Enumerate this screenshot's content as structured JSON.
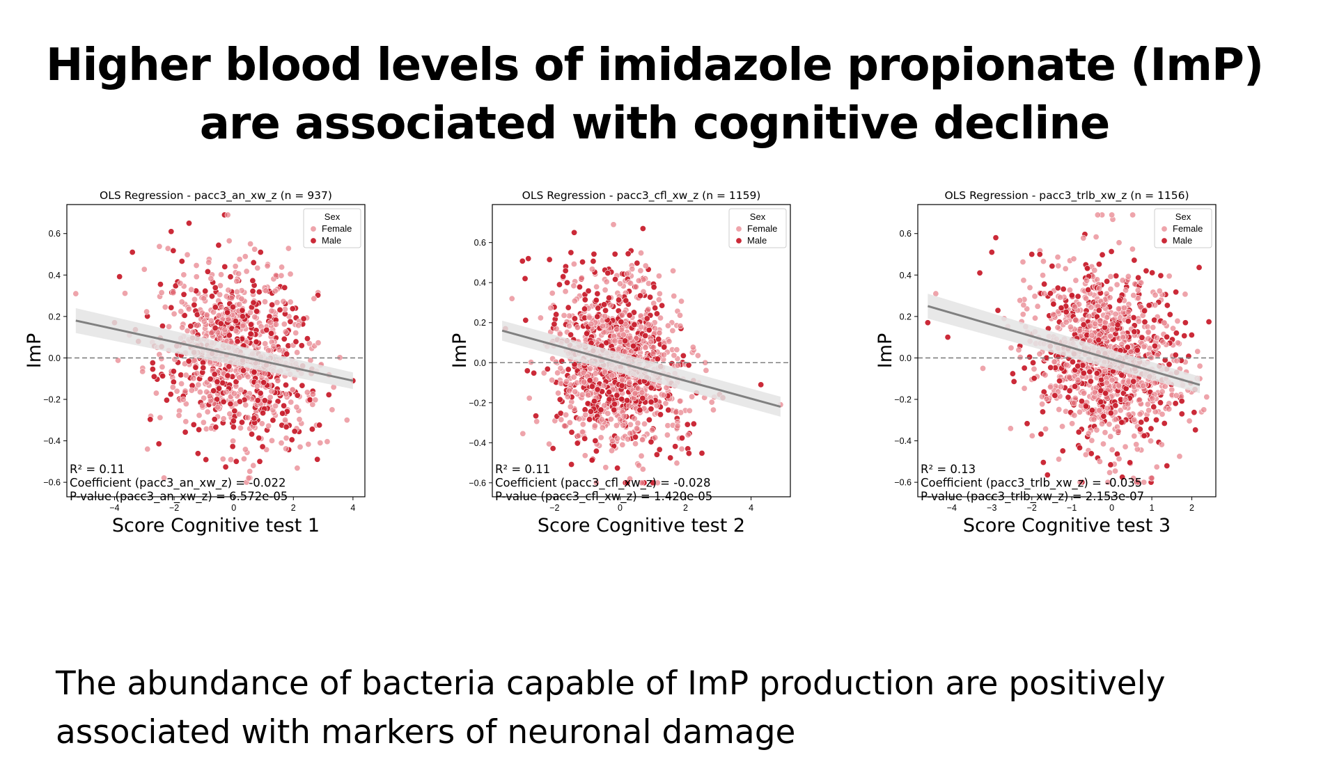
{
  "slide": {
    "title_line1": "Higher blood levels of imidazole propionate (ImP)",
    "title_line2": "are associated with cognitive decline",
    "footer_line1": "The abundance of bacteria capable of ImP production are positively",
    "footer_line2": "associated with markers of neuronal damage"
  },
  "colors": {
    "female": "#e8868f",
    "male": "#c81f2d",
    "regression_line": "#808080",
    "confidence_band": "#e4e4e4",
    "zero_line": "#808080"
  },
  "chart_data": [
    {
      "type": "scatter",
      "title": "OLS Regression - pacc3_an_xw_z (n = 937)",
      "xlabel": "Score Cognitive test 1",
      "ylabel": "ImP",
      "xlim": [
        -5.6,
        4.4
      ],
      "ylim": [
        -0.67,
        0.74
      ],
      "xticks": [
        -4,
        -2,
        0,
        2,
        4
      ],
      "xtick_labels": [
        "−4",
        "−2",
        "0",
        "2",
        "4"
      ],
      "yticks": [
        -0.6,
        -0.4,
        -0.2,
        0.0,
        0.2,
        0.4,
        0.6
      ],
      "ytick_labels": [
        "−0.6",
        "−0.4",
        "−0.2",
        "0.0",
        "0.2",
        "0.4",
        "0.6"
      ],
      "legend": {
        "title": "Sex",
        "position": "top-right",
        "entries": [
          "Female",
          "Male"
        ]
      },
      "grid": false,
      "zero_line": true,
      "regression": {
        "x": [
          -5.3,
          4.0
        ],
        "y": [
          0.18,
          -0.11
        ],
        "band_halfwidth": [
          0.06,
          0.04
        ]
      },
      "annotations": [
        "R² = 0.11",
        "Coefficient (pacc3_an_xw_z) = -0.022",
        "P-value (pacc3_an_xw_z) = 6.572e-05"
      ],
      "scatter": {
        "n": 937,
        "x_mean": 0.1,
        "x_sd": 1.25,
        "y_mean": 0.0,
        "y_sd": 0.22,
        "slope": -0.022
      },
      "series": [
        {
          "name": "Female",
          "x": [
            -5.3,
            -3.5,
            -2.6,
            3.3,
            3.8,
            0.5,
            -0.2,
            2.9
          ],
          "y": [
            0.31,
            0.11,
            -0.17,
            -0.25,
            -0.3,
            -0.58,
            0.69,
            -0.41
          ]
        },
        {
          "name": "Male",
          "x": [
            -4.0,
            -3.2,
            -1.5,
            4.0,
            -2.1,
            0.9,
            -3.4
          ],
          "y": [
            0.17,
            0.08,
            0.65,
            -0.11,
            0.61,
            0.51,
            0.51
          ]
        }
      ]
    },
    {
      "type": "scatter",
      "title": "OLS Regression - pacc3_cfl_xw_z (n = 1159)",
      "xlabel": "Score Cognitive test 2",
      "ylabel": "ImP",
      "xlim": [
        -3.9,
        5.2
      ],
      "ylim": [
        -0.67,
        0.79
      ],
      "xticks": [
        -2,
        0,
        2,
        4
      ],
      "xtick_labels": [
        "−2",
        "0",
        "2",
        "4"
      ],
      "yticks": [
        -0.6,
        -0.4,
        -0.2,
        0.0,
        0.2,
        0.4,
        0.6
      ],
      "ytick_labels": [
        "−0.6",
        "−0.4",
        "−0.2",
        "0.0",
        "0.2",
        "0.4",
        "0.6"
      ],
      "legend": {
        "title": "Sex",
        "position": "top-right",
        "entries": [
          "Female",
          "Male"
        ]
      },
      "grid": false,
      "zero_line": true,
      "regression": {
        "x": [
          -3.6,
          4.9
        ],
        "y": [
          0.16,
          -0.22
        ],
        "band_halfwidth": [
          0.05,
          0.05
        ]
      },
      "annotations": [
        "R² = 0.11",
        "Coefficient (pacc3_cfl_xw_z) = -0.028",
        "P-value (pacc3_cfl_xw_z) = 1.420e-05"
      ],
      "scatter": {
        "n": 1159,
        "x_mean": -0.1,
        "x_sd": 1.0,
        "y_mean": 0.0,
        "y_sd": 0.22,
        "slope": -0.028
      },
      "series": [
        {
          "name": "Female",
          "x": [
            -3.3,
            4.9,
            2.4,
            0.3,
            -0.2,
            2.6
          ],
          "y": [
            0.32,
            -0.21,
            -0.1,
            -0.58,
            0.69,
            0.0
          ]
        },
        {
          "name": "Male",
          "x": [
            -3.5,
            4.3,
            -1.4,
            -2.8,
            -2.9,
            0.7,
            -1.5
          ],
          "y": [
            0.17,
            -0.11,
            0.65,
            0.52,
            0.42,
            0.67,
            0.55
          ]
        }
      ]
    },
    {
      "type": "scatter",
      "title": "OLS Regression - pacc3_trlb_xw_z (n = 1156)",
      "xlabel": "Score Cognitive test 3",
      "ylabel": "ImP",
      "xlim": [
        -4.85,
        2.6
      ],
      "ylim": [
        -0.67,
        0.74
      ],
      "xticks": [
        -4,
        -3,
        -2,
        -1,
        0,
        1,
        2
      ],
      "xtick_labels": [
        "−4",
        "−3",
        "−2",
        "−1",
        "0",
        "1",
        "2"
      ],
      "yticks": [
        -0.6,
        -0.4,
        -0.2,
        0.0,
        0.2,
        0.4,
        0.6
      ],
      "ytick_labels": [
        "−0.6",
        "−0.4",
        "−0.2",
        "0.0",
        "0.2",
        "0.4",
        "0.6"
      ],
      "legend": {
        "title": "Sex",
        "position": "top-right",
        "entries": [
          "Female",
          "Male"
        ]
      },
      "grid": false,
      "zero_line": true,
      "regression": {
        "x": [
          -4.6,
          2.2
        ],
        "y": [
          0.25,
          -0.13
        ],
        "band_halfwidth": [
          0.06,
          0.04
        ]
      },
      "annotations": [
        "R² = 0.13",
        "Coefficient (pacc3_trlb_xw_z) = -0.035",
        "P-value (pacc3_trlb_xw_z) = 2.153e-07"
      ],
      "scatter": {
        "n": 1156,
        "x_mean": -0.1,
        "x_sd": 0.95,
        "y_mean": 0.0,
        "y_sd": 0.22,
        "slope": -0.035
      },
      "series": [
        {
          "name": "Female",
          "x": [
            -4.4,
            2.2,
            2.3,
            0.0,
            1.0,
            -0.3
          ],
          "y": [
            0.31,
            -0.1,
            -0.25,
            0.69,
            -0.58,
            -0.5
          ]
        },
        {
          "name": "Male",
          "x": [
            -4.6,
            -4.1,
            -3.3,
            -2.9,
            -3.0,
            -2.0,
            -1.8
          ],
          "y": [
            0.17,
            0.1,
            0.41,
            0.58,
            0.51,
            0.5,
            0.5
          ]
        }
      ]
    }
  ]
}
